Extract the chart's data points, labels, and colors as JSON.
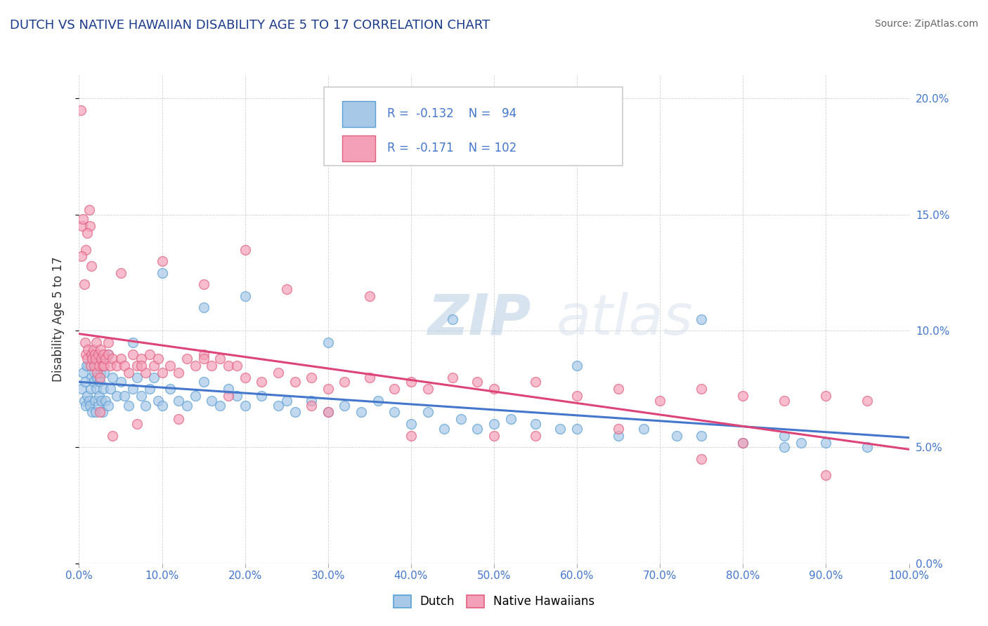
{
  "title": "DUTCH VS NATIVE HAWAIIAN DISABILITY AGE 5 TO 17 CORRELATION CHART",
  "source": "Source: ZipAtlas.com",
  "ylabel": "Disability Age 5 to 17",
  "xlim": [
    0,
    100
  ],
  "ylim": [
    0,
    21
  ],
  "xticks": [
    0,
    10,
    20,
    30,
    40,
    50,
    60,
    70,
    80,
    90,
    100
  ],
  "yticks": [
    0,
    5,
    10,
    15,
    20
  ],
  "dutch_R": -0.132,
  "dutch_N": 94,
  "native_R": -0.171,
  "native_N": 102,
  "dutch_color": "#a8c8e8",
  "native_color": "#f4a0b8",
  "dutch_edge_color": "#5a9fd4",
  "native_edge_color": "#e06080",
  "dutch_line_color": "#4477cc",
  "native_line_color": "#dd4477",
  "axis_color": "#4477cc",
  "title_color": "#1a3a8a",
  "source_color": "#666666",
  "background_color": "#ffffff",
  "watermark": "ZIPatlas",
  "grid_color": "#cccccc",
  "dutch_x": [
    0.3,
    0.5,
    0.6,
    0.8,
    1.0,
    1.1,
    1.2,
    1.3,
    1.4,
    1.5,
    1.6,
    1.7,
    1.8,
    1.9,
    2.0,
    2.1,
    2.2,
    2.3,
    2.4,
    2.5,
    2.6,
    2.7,
    2.8,
    2.9,
    3.0,
    3.2,
    3.5,
    3.8,
    4.0,
    4.5,
    5.0,
    5.5,
    6.0,
    6.5,
    7.0,
    7.5,
    8.0,
    8.5,
    9.0,
    9.5,
    10.0,
    11.0,
    12.0,
    13.0,
    14.0,
    15.0,
    16.0,
    17.0,
    18.0,
    19.0,
    20.0,
    22.0,
    24.0,
    25.0,
    26.0,
    28.0,
    30.0,
    32.0,
    34.0,
    36.0,
    38.0,
    40.0,
    42.0,
    44.0,
    46.0,
    48.0,
    50.0,
    52.0,
    55.0,
    58.0,
    60.0,
    65.0,
    68.0,
    72.0,
    75.0,
    80.0,
    85.0,
    87.0,
    90.0,
    95.0,
    3.5,
    6.5,
    10.0,
    15.0,
    20.0,
    30.0,
    45.0,
    60.0,
    75.0,
    85.0,
    2.0,
    1.5,
    0.9,
    0.7
  ],
  "dutch_y": [
    7.5,
    8.2,
    7.0,
    6.8,
    7.2,
    8.5,
    7.0,
    6.8,
    7.5,
    8.0,
    6.5,
    7.8,
    8.2,
    7.0,
    6.5,
    7.5,
    8.0,
    6.8,
    7.2,
    7.8,
    8.2,
    7.0,
    6.5,
    7.5,
    8.2,
    7.0,
    6.8,
    7.5,
    8.0,
    7.2,
    7.8,
    7.2,
    6.8,
    7.5,
    8.0,
    7.2,
    6.8,
    7.5,
    8.0,
    7.0,
    6.8,
    7.5,
    7.0,
    6.8,
    7.2,
    7.8,
    7.0,
    6.8,
    7.5,
    7.2,
    6.8,
    7.2,
    6.8,
    7.0,
    6.5,
    7.0,
    6.5,
    6.8,
    6.5,
    7.0,
    6.5,
    6.0,
    6.5,
    5.8,
    6.2,
    5.8,
    6.0,
    6.2,
    6.0,
    5.8,
    5.8,
    5.5,
    5.8,
    5.5,
    5.5,
    5.2,
    5.0,
    5.2,
    5.2,
    5.0,
    9.0,
    9.5,
    12.5,
    11.0,
    11.5,
    9.5,
    10.5,
    8.5,
    10.5,
    5.5,
    8.8,
    9.0,
    8.5,
    7.8
  ],
  "native_x": [
    0.2,
    0.4,
    0.5,
    0.7,
    0.8,
    1.0,
    1.1,
    1.2,
    1.3,
    1.4,
    1.5,
    1.6,
    1.7,
    1.8,
    1.9,
    2.0,
    2.1,
    2.2,
    2.3,
    2.4,
    2.5,
    2.6,
    2.7,
    2.8,
    2.9,
    3.0,
    3.2,
    3.5,
    3.8,
    4.0,
    4.5,
    5.0,
    5.5,
    6.0,
    6.5,
    7.0,
    7.5,
    8.0,
    8.5,
    9.0,
    9.5,
    10.0,
    11.0,
    12.0,
    13.0,
    14.0,
    15.0,
    16.0,
    17.0,
    18.0,
    19.0,
    20.0,
    22.0,
    24.0,
    26.0,
    28.0,
    30.0,
    32.0,
    35.0,
    38.0,
    40.0,
    42.0,
    45.0,
    48.0,
    50.0,
    55.0,
    60.0,
    65.0,
    70.0,
    75.0,
    80.0,
    85.0,
    90.0,
    95.0,
    5.0,
    10.0,
    15.0,
    20.0,
    25.0,
    35.0,
    50.0,
    65.0,
    80.0,
    1.5,
    0.8,
    0.6,
    2.5,
    4.0,
    7.0,
    12.0,
    18.0,
    28.0,
    40.0,
    55.0,
    75.0,
    90.0,
    0.3,
    1.0,
    3.5,
    7.5,
    15.0,
    30.0
  ],
  "native_y": [
    19.5,
    14.5,
    14.8,
    9.5,
    9.0,
    8.8,
    9.2,
    15.2,
    14.5,
    8.5,
    9.0,
    8.8,
    9.2,
    8.5,
    9.0,
    8.8,
    9.5,
    8.2,
    9.0,
    8.5,
    8.0,
    9.2,
    8.8,
    8.5,
    9.0,
    8.5,
    8.8,
    9.0,
    8.5,
    8.8,
    8.5,
    8.8,
    8.5,
    8.2,
    9.0,
    8.5,
    8.8,
    8.2,
    9.0,
    8.5,
    8.8,
    8.2,
    8.5,
    8.2,
    8.8,
    8.5,
    9.0,
    8.5,
    8.8,
    8.5,
    8.5,
    8.0,
    7.8,
    8.2,
    7.8,
    8.0,
    7.5,
    7.8,
    8.0,
    7.5,
    7.8,
    7.5,
    8.0,
    7.8,
    7.5,
    7.8,
    7.2,
    7.5,
    7.0,
    7.5,
    7.2,
    7.0,
    7.2,
    7.0,
    12.5,
    13.0,
    12.0,
    13.5,
    11.8,
    11.5,
    5.5,
    5.8,
    5.2,
    12.8,
    13.5,
    12.0,
    6.5,
    5.5,
    6.0,
    6.2,
    7.2,
    6.8,
    5.5,
    5.5,
    4.5,
    3.8,
    13.2,
    14.2,
    9.5,
    8.5,
    8.8,
    6.5
  ]
}
